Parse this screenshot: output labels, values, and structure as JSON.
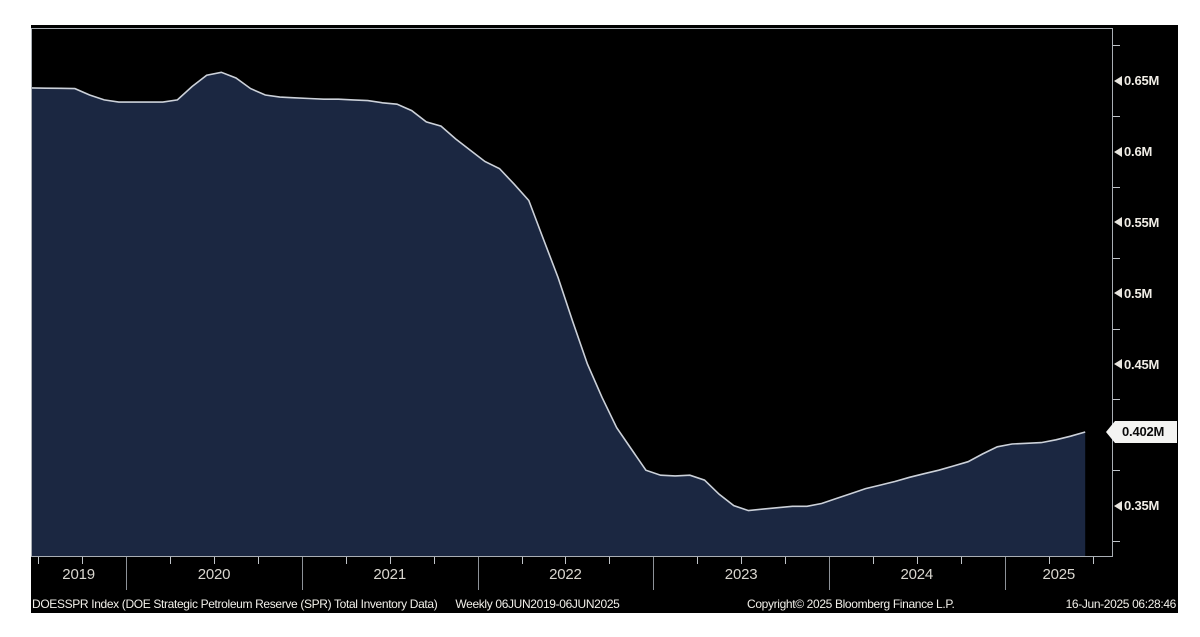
{
  "chart_data": {
    "type": "area",
    "title": "DOESSPR Index (DOE Strategic Petroleum Reserve (SPR) Total Inventory Data)",
    "frequency": "Weekly 06JUN2019-06JUN2025",
    "x_range": [
      "06JUN2019",
      "06JUN2025"
    ],
    "ylim": [
      0.3137,
      0.6873
    ],
    "y_unit": "M",
    "grid": false,
    "legend": "none",
    "y_ticks_major": [
      {
        "value": 0.65,
        "label": "0.65M"
      },
      {
        "value": 0.6,
        "label": "0.6M"
      },
      {
        "value": 0.55,
        "label": "0.55M"
      },
      {
        "value": 0.5,
        "label": "0.5M"
      },
      {
        "value": 0.45,
        "label": "0.45M"
      },
      {
        "value": 0.35,
        "label": "0.35M"
      }
    ],
    "y_minor_step": 0.025,
    "x_year_labels": [
      "2019",
      "2020",
      "2021",
      "2022",
      "2023",
      "2024",
      "2025"
    ],
    "last_point": {
      "label": "0.402M",
      "value": 0.402,
      "date": "2025-06"
    },
    "points": [
      [
        "2019-06",
        0.645
      ],
      [
        "2019-07",
        0.6448
      ],
      [
        "2019-08",
        0.6447
      ],
      [
        "2019-09",
        0.6445
      ],
      [
        "2019-10",
        0.64
      ],
      [
        "2019-11",
        0.6365
      ],
      [
        "2019-12",
        0.635
      ],
      [
        "2020-01",
        0.635
      ],
      [
        "2020-02",
        0.635
      ],
      [
        "2020-03",
        0.635
      ],
      [
        "2020-04",
        0.6365
      ],
      [
        "2020-05",
        0.646
      ],
      [
        "2020-06",
        0.654
      ],
      [
        "2020-07",
        0.656
      ],
      [
        "2020-08",
        0.652
      ],
      [
        "2020-09",
        0.6445
      ],
      [
        "2020-10",
        0.64
      ],
      [
        "2020-11",
        0.6385
      ],
      [
        "2020-12",
        0.638
      ],
      [
        "2021-01",
        0.6375
      ],
      [
        "2021-02",
        0.637
      ],
      [
        "2021-03",
        0.637
      ],
      [
        "2021-04",
        0.6365
      ],
      [
        "2021-05",
        0.636
      ],
      [
        "2021-06",
        0.6345
      ],
      [
        "2021-07",
        0.6335
      ],
      [
        "2021-08",
        0.629
      ],
      [
        "2021-09",
        0.621
      ],
      [
        "2021-10",
        0.618
      ],
      [
        "2021-11",
        0.609
      ],
      [
        "2021-12",
        0.601
      ],
      [
        "2022-01",
        0.593
      ],
      [
        "2022-02",
        0.588
      ],
      [
        "2022-03",
        0.577
      ],
      [
        "2022-04",
        0.5655
      ],
      [
        "2022-05",
        0.538
      ],
      [
        "2022-06",
        0.511
      ],
      [
        "2022-07",
        0.48
      ],
      [
        "2022-08",
        0.45
      ],
      [
        "2022-09",
        0.4265
      ],
      [
        "2022-10",
        0.405
      ],
      [
        "2022-11",
        0.39
      ],
      [
        "2022-12",
        0.375
      ],
      [
        "2023-01",
        0.3715
      ],
      [
        "2023-02",
        0.371
      ],
      [
        "2023-03",
        0.3715
      ],
      [
        "2023-04",
        0.368
      ],
      [
        "2023-05",
        0.358
      ],
      [
        "2023-06",
        0.35
      ],
      [
        "2023-07",
        0.3465
      ],
      [
        "2023-08",
        0.3475
      ],
      [
        "2023-09",
        0.3485
      ],
      [
        "2023-10",
        0.3495
      ],
      [
        "2023-11",
        0.3495
      ],
      [
        "2023-12",
        0.3515
      ],
      [
        "2024-01",
        0.355
      ],
      [
        "2024-02",
        0.3585
      ],
      [
        "2024-03",
        0.362
      ],
      [
        "2024-04",
        0.3645
      ],
      [
        "2024-05",
        0.367
      ],
      [
        "2024-06",
        0.37
      ],
      [
        "2024-07",
        0.3725
      ],
      [
        "2024-08",
        0.375
      ],
      [
        "2024-09",
        0.378
      ],
      [
        "2024-10",
        0.381
      ],
      [
        "2024-11",
        0.3865
      ],
      [
        "2024-12",
        0.3915
      ],
      [
        "2025-01",
        0.3935
      ],
      [
        "2025-02",
        0.394
      ],
      [
        "2025-03",
        0.3945
      ],
      [
        "2025-04",
        0.3965
      ],
      [
        "2025-05",
        0.399
      ],
      [
        "2025-06",
        0.402
      ]
    ],
    "colors": {
      "background": "#000000",
      "page_background": "#ffffff",
      "area_fill": "#1b2741",
      "line": "#ccd1d9",
      "frame": "#a9aeb4",
      "axis_text": "#f0ede6",
      "year_text": "#d9d6cf",
      "last_label_bg": "#f4f4f2",
      "last_label_text": "#0b0b0b"
    }
  },
  "footer": {
    "description": "DOESSPR Index (DOE Strategic Petroleum Reserve (SPR) Total Inventory Data)",
    "frequency": "Weekly 06JUN2019-06JUN2025",
    "copyright": "Copyright© 2025 Bloomberg Finance L.P.",
    "timestamp": "16-Jun-2025 06:28:46"
  }
}
